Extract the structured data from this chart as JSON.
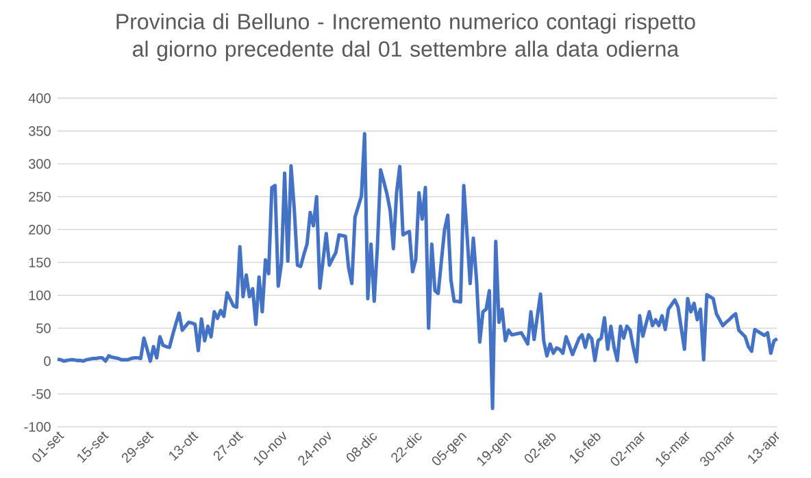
{
  "chart_data": {
    "type": "line",
    "title": "Provincia di Belluno - Incremento numerico contagi rispetto al giorno precedente dal 01 settembre alla data odierna",
    "color": "#4472c4",
    "categories": [
      "01-set",
      null,
      null,
      null,
      null,
      null,
      null,
      null,
      null,
      null,
      null,
      null,
      null,
      null,
      "15-set",
      null,
      null,
      null,
      null,
      null,
      null,
      null,
      null,
      null,
      null,
      null,
      null,
      null,
      "29-set",
      null,
      null,
      null,
      null,
      null,
      null,
      null,
      null,
      null,
      null,
      null,
      null,
      null,
      "13-ott",
      null,
      null,
      null,
      null,
      null,
      null,
      null,
      null,
      null,
      null,
      null,
      null,
      null,
      "27-ott",
      null,
      null,
      null,
      null,
      null,
      null,
      null,
      null,
      null,
      null,
      null,
      null,
      null,
      "10-nov",
      null,
      null,
      null,
      null,
      null,
      null,
      null,
      null,
      null,
      null,
      null,
      null,
      null,
      "24-nov",
      null,
      null,
      null,
      null,
      null,
      null,
      null,
      null,
      null,
      null,
      null,
      null,
      null,
      "08-dic",
      null,
      null,
      null,
      null,
      null,
      null,
      null,
      null,
      null,
      null,
      null,
      null,
      null,
      "22-dic",
      null,
      null,
      null,
      null,
      null,
      null,
      null,
      null,
      null,
      null,
      null,
      null,
      null,
      "05-gen",
      null,
      null,
      null,
      null,
      null,
      null,
      null,
      null,
      null,
      null,
      null,
      null,
      null,
      "19-gen",
      null,
      null,
      null,
      null,
      null,
      null,
      null,
      null,
      null,
      null,
      null,
      null,
      null,
      "02-feb",
      null,
      null,
      null,
      null,
      null,
      null,
      null,
      null,
      null,
      null,
      null,
      null,
      null,
      "16-feb",
      null,
      null,
      null,
      null,
      null,
      null,
      null,
      null,
      null,
      null,
      null,
      null,
      null,
      "02-mar",
      null,
      null,
      null,
      null,
      null,
      null,
      null,
      null,
      null,
      null,
      null,
      null,
      null,
      "16-mar",
      null,
      null,
      null,
      null,
      null,
      null,
      null,
      null,
      null,
      null,
      null,
      null,
      null,
      "30-mar",
      null,
      null,
      null,
      null,
      null,
      null,
      null,
      null,
      null,
      null,
      null,
      null,
      null,
      "13-apr",
      null
    ],
    "values": [
      3,
      2,
      0,
      1,
      2,
      2,
      1,
      1,
      0,
      2,
      3,
      4,
      4,
      5,
      5,
      0,
      8,
      6,
      5,
      4,
      2,
      2,
      2,
      4,
      5,
      5,
      4,
      35,
      18,
      0,
      22,
      5,
      37,
      24,
      22,
      21,
      40,
      57,
      73,
      47,
      53,
      59,
      58,
      56,
      16,
      64,
      31,
      53,
      37,
      75,
      65,
      77,
      68,
      104,
      94,
      84,
      82,
      174,
      98,
      131,
      98,
      110,
      56,
      128,
      75,
      154,
      133,
      264,
      267,
      114,
      149,
      286,
      152,
      297,
      232,
      146,
      144,
      162,
      178,
      226,
      206,
      250,
      111,
      153,
      194,
      146,
      156,
      165,
      192,
      191,
      190,
      142,
      118,
      219,
      235,
      251,
      346,
      95,
      178,
      91,
      174,
      291,
      273,
      254,
      229,
      171,
      256,
      296,
      192,
      195,
      197,
      136,
      155,
      256,
      216,
      264,
      50,
      178,
      107,
      103,
      152,
      200,
      222,
      123,
      91,
      91,
      90,
      267,
      194,
      118,
      187,
      123,
      29,
      75,
      79,
      107,
      -72,
      182,
      59,
      79,
      31,
      47,
      40,
      41,
      42,
      43,
      35,
      26,
      75,
      33,
      68,
      102,
      31,
      8,
      26,
      12,
      20,
      18,
      12,
      37,
      24,
      10,
      22,
      34,
      40,
      21,
      40,
      34,
      1,
      31,
      35,
      66,
      18,
      53,
      21,
      1,
      53,
      35,
      53,
      47,
      21,
      -1,
      69,
      38,
      57,
      75,
      54,
      63,
      54,
      69,
      48,
      79,
      86,
      93,
      82,
      50,
      18,
      95,
      75,
      88,
      63,
      79,
      2,
      101,
      98,
      95,
      72,
      63,
      54,
      59,
      63,
      68,
      72,
      47,
      42,
      37,
      22,
      15,
      48,
      45,
      42,
      39,
      43,
      12,
      31,
      34
    ],
    "ylim": [
      -100,
      400
    ],
    "yticks": [
      -100,
      -50,
      0,
      50,
      100,
      150,
      200,
      250,
      300,
      350,
      400
    ],
    "grid": "y"
  }
}
